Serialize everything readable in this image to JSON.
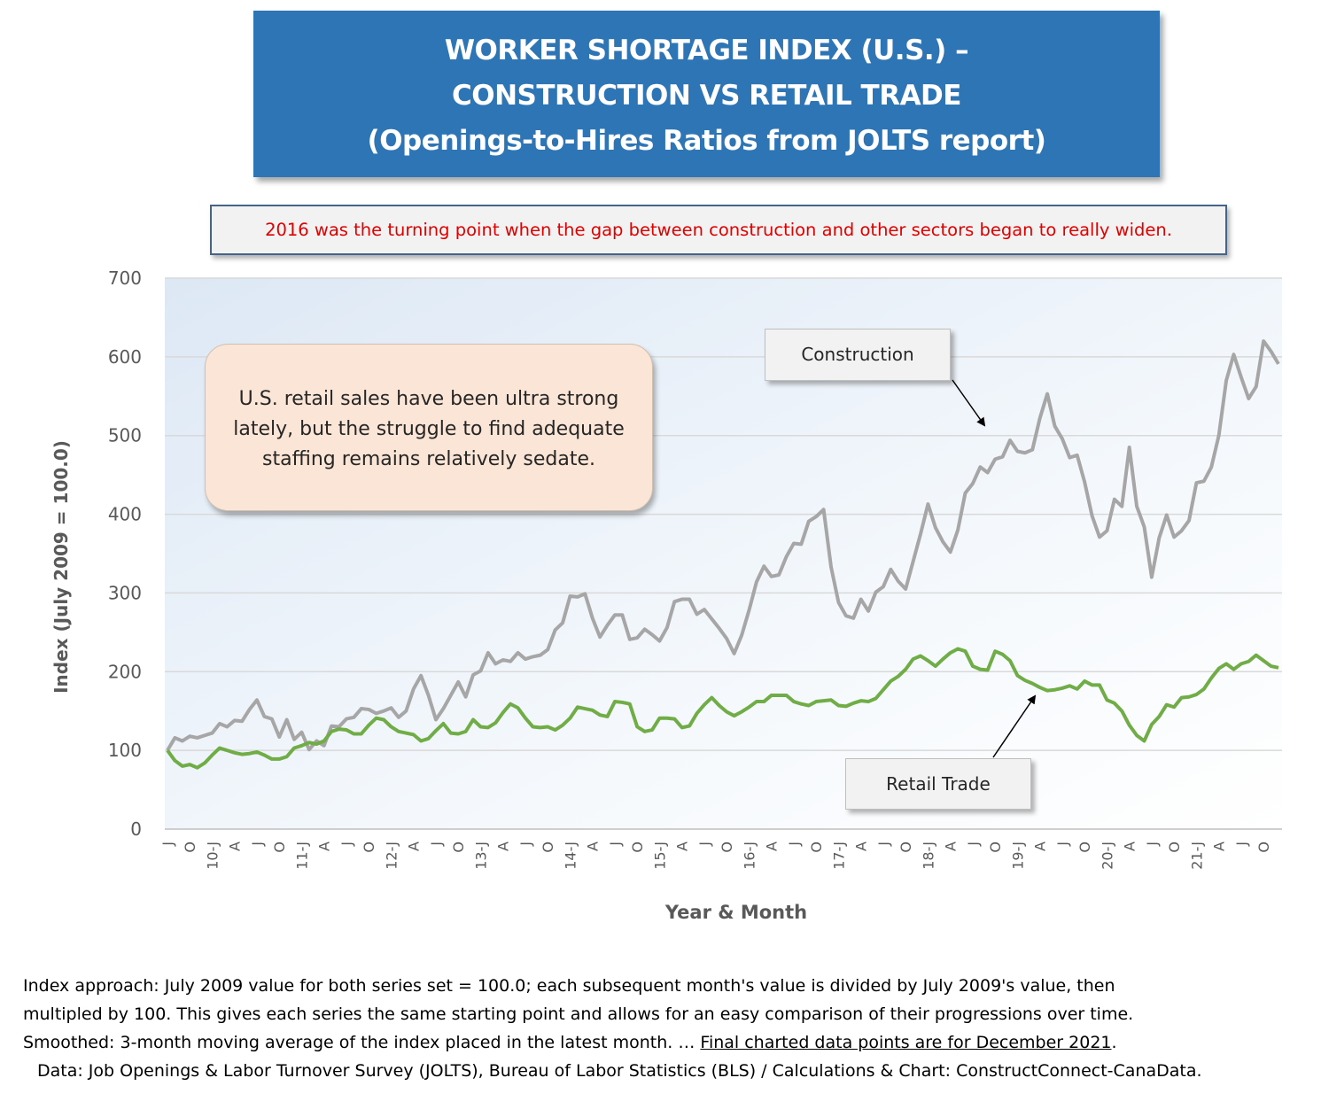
{
  "title": {
    "line1": "WORKER SHORTAGE INDEX (U.S.) –",
    "line2": "CONSTRUCTION VS RETAIL TRADE",
    "line3": "(Openings-to-Hires Ratios from JOLTS report)"
  },
  "note": "2016 was the turning point when the gap between construction and other sectors began to really widen.",
  "callout": "U.S. retail sales have been ultra strong lately, but the struggle to find adequate staffing remains relatively sedate.",
  "labels": {
    "construction": "Construction",
    "retail": "Retail Trade"
  },
  "footnote": {
    "line1": "Index approach: July 2009 value for both series set = 100.0; each subsequent month's value is divided by July 2009's value, then",
    "line2": "multipled by 100. This gives each series the same starting point and allows for an easy comparison of their progressions over time.",
    "line3_a": "Smoothed: 3-month moving average of the index placed in the latest month. … ",
    "line3_b": "Final charted data points are for December 2021",
    "line3_c": ".",
    "line4": "Data: Job Openings & Labor Turnover Survey (JOLTS), Bureau of Labor Statistics (BLS) / Calculations & Chart: ConstructConnect-CanaData."
  },
  "colors": {
    "construction": "#a6a6a6",
    "retail": "#70ad47",
    "title_bg": "#2e75b6",
    "note_text": "#e00000",
    "callout_bg": "#fbe5d6"
  },
  "chart_data": {
    "type": "line",
    "xlabel": "Year & Month",
    "ylabel": "Index (July 2009 = 100.0)",
    "ylim": [
      0,
      700
    ],
    "yticks": [
      0,
      100,
      200,
      300,
      400,
      500,
      600,
      700
    ],
    "grid": true,
    "x": [
      "2009-07",
      "2009-08",
      "2009-09",
      "2009-10",
      "2009-11",
      "2009-12",
      "2010-01",
      "2010-02",
      "2010-03",
      "2010-04",
      "2010-05",
      "2010-06",
      "2010-07",
      "2010-08",
      "2010-09",
      "2010-10",
      "2010-11",
      "2010-12",
      "2011-01",
      "2011-02",
      "2011-03",
      "2011-04",
      "2011-05",
      "2011-06",
      "2011-07",
      "2011-08",
      "2011-09",
      "2011-10",
      "2011-11",
      "2011-12",
      "2012-01",
      "2012-02",
      "2012-03",
      "2012-04",
      "2012-05",
      "2012-06",
      "2012-07",
      "2012-08",
      "2012-09",
      "2012-10",
      "2012-11",
      "2012-12",
      "2013-01",
      "2013-02",
      "2013-03",
      "2013-04",
      "2013-05",
      "2013-06",
      "2013-07",
      "2013-08",
      "2013-09",
      "2013-10",
      "2013-11",
      "2013-12",
      "2014-01",
      "2014-02",
      "2014-03",
      "2014-04",
      "2014-05",
      "2014-06",
      "2014-07",
      "2014-08",
      "2014-09",
      "2014-10",
      "2014-11",
      "2014-12",
      "2015-01",
      "2015-02",
      "2015-03",
      "2015-04",
      "2015-05",
      "2015-06",
      "2015-07",
      "2015-08",
      "2015-09",
      "2015-10",
      "2015-11",
      "2015-12",
      "2016-01",
      "2016-02",
      "2016-03",
      "2016-04",
      "2016-05",
      "2016-06",
      "2016-07",
      "2016-08",
      "2016-09",
      "2016-10",
      "2016-11",
      "2016-12",
      "2017-01",
      "2017-02",
      "2017-03",
      "2017-04",
      "2017-05",
      "2017-06",
      "2017-07",
      "2017-08",
      "2017-09",
      "2017-10",
      "2017-11",
      "2017-12",
      "2018-01",
      "2018-02",
      "2018-03",
      "2018-04",
      "2018-05",
      "2018-06",
      "2018-07",
      "2018-08",
      "2018-09",
      "2018-10",
      "2018-11",
      "2018-12",
      "2019-01",
      "2019-02",
      "2019-03",
      "2019-04",
      "2019-05",
      "2019-06",
      "2019-07",
      "2019-08",
      "2019-09",
      "2019-10",
      "2019-11",
      "2019-12",
      "2020-01",
      "2020-02",
      "2020-03",
      "2020-04",
      "2020-05",
      "2020-06",
      "2020-07",
      "2020-08",
      "2020-09",
      "2020-10",
      "2020-11",
      "2020-12",
      "2021-01",
      "2021-02",
      "2021-03",
      "2021-04",
      "2021-05",
      "2021-06",
      "2021-07",
      "2021-08",
      "2021-09",
      "2021-10",
      "2021-11",
      "2021-12"
    ],
    "tick_labels": [
      {
        "month": "2009-07",
        "label": "J"
      },
      {
        "month": "2009-10",
        "label": "O"
      },
      {
        "month": "2010-01",
        "label": "10-J"
      },
      {
        "month": "2010-04",
        "label": "A"
      },
      {
        "month": "2010-07",
        "label": "J"
      },
      {
        "month": "2010-10",
        "label": "O"
      },
      {
        "month": "2011-01",
        "label": "11-J"
      },
      {
        "month": "2011-04",
        "label": "A"
      },
      {
        "month": "2011-07",
        "label": "J"
      },
      {
        "month": "2011-10",
        "label": "O"
      },
      {
        "month": "2012-01",
        "label": "12-J"
      },
      {
        "month": "2012-04",
        "label": "A"
      },
      {
        "month": "2012-07",
        "label": "J"
      },
      {
        "month": "2012-10",
        "label": "O"
      },
      {
        "month": "2013-01",
        "label": "13-J"
      },
      {
        "month": "2013-04",
        "label": "A"
      },
      {
        "month": "2013-07",
        "label": "J"
      },
      {
        "month": "2013-10",
        "label": "O"
      },
      {
        "month": "2014-01",
        "label": "14-J"
      },
      {
        "month": "2014-04",
        "label": "A"
      },
      {
        "month": "2014-07",
        "label": "J"
      },
      {
        "month": "2014-10",
        "label": "O"
      },
      {
        "month": "2015-01",
        "label": "15-J"
      },
      {
        "month": "2015-04",
        "label": "A"
      },
      {
        "month": "2015-07",
        "label": "J"
      },
      {
        "month": "2015-10",
        "label": "O"
      },
      {
        "month": "2016-01",
        "label": "16-J"
      },
      {
        "month": "2016-04",
        "label": "A"
      },
      {
        "month": "2016-07",
        "label": "J"
      },
      {
        "month": "2016-10",
        "label": "O"
      },
      {
        "month": "2017-01",
        "label": "17-J"
      },
      {
        "month": "2017-04",
        "label": "A"
      },
      {
        "month": "2017-07",
        "label": "J"
      },
      {
        "month": "2017-10",
        "label": "O"
      },
      {
        "month": "2018-01",
        "label": "18-J"
      },
      {
        "month": "2018-04",
        "label": "A"
      },
      {
        "month": "2018-07",
        "label": "J"
      },
      {
        "month": "2018-10",
        "label": "O"
      },
      {
        "month": "2019-01",
        "label": "19-J"
      },
      {
        "month": "2019-04",
        "label": "A"
      },
      {
        "month": "2019-07",
        "label": "J"
      },
      {
        "month": "2019-10",
        "label": "O"
      },
      {
        "month": "2020-01",
        "label": "20-J"
      },
      {
        "month": "2020-04",
        "label": "A"
      },
      {
        "month": "2020-07",
        "label": "J"
      },
      {
        "month": "2020-10",
        "label": "O"
      },
      {
        "month": "2021-01",
        "label": "21-J"
      },
      {
        "month": "2021-04",
        "label": "A"
      },
      {
        "month": "2021-07",
        "label": "J"
      },
      {
        "month": "2021-10",
        "label": "O"
      }
    ],
    "series": [
      {
        "name": "Construction",
        "values": [
          100,
          116,
          112,
          118,
          116,
          119,
          122,
          134,
          130,
          138,
          137,
          152,
          164,
          143,
          140,
          117,
          139,
          114,
          123,
          101,
          112,
          106,
          131,
          130,
          140,
          142,
          153,
          152,
          147,
          150,
          154,
          142,
          150,
          178,
          195,
          170,
          139,
          153,
          170,
          187,
          168,
          196,
          201,
          224,
          210,
          215,
          213,
          224,
          216,
          219,
          221,
          228,
          253,
          262,
          296,
          295,
          299,
          268,
          244,
          259,
          272,
          272,
          241,
          243,
          254,
          247,
          239,
          256,
          289,
          292,
          292,
          273,
          279,
          267,
          255,
          242,
          223,
          246,
          278,
          314,
          334,
          321,
          323,
          346,
          363,
          362,
          391,
          397,
          406,
          333,
          288,
          271,
          268,
          292,
          277,
          301,
          308,
          330,
          315,
          305,
          340,
          375,
          413,
          383,
          365,
          352,
          380,
          427,
          439,
          460,
          453,
          470,
          473,
          494,
          480,
          478,
          482,
          522,
          553,
          512,
          496,
          472,
          475,
          441,
          398,
          371,
          379,
          419,
          410,
          485,
          410,
          384,
          320,
          370,
          399,
          371,
          379,
          392,
          440,
          442,
          460,
          500,
          570,
          603,
          574,
          547,
          562,
          620,
          607,
          591
        ]
      },
      {
        "name": "Retail Trade",
        "values": [
          100,
          87,
          80,
          82,
          78,
          84,
          94,
          103,
          100,
          97,
          95,
          96,
          98,
          94,
          89,
          89,
          92,
          103,
          106,
          110,
          108,
          112,
          124,
          127,
          126,
          121,
          121,
          132,
          141,
          139,
          130,
          124,
          122,
          120,
          112,
          115,
          125,
          134,
          122,
          121,
          124,
          139,
          130,
          129,
          135,
          148,
          159,
          154,
          141,
          130,
          129,
          130,
          126,
          132,
          141,
          155,
          153,
          151,
          145,
          143,
          162,
          161,
          159,
          130,
          124,
          126,
          141,
          141,
          140,
          129,
          131,
          147,
          158,
          167,
          157,
          149,
          144,
          149,
          155,
          162,
          162,
          170,
          170,
          170,
          162,
          159,
          157,
          162,
          163,
          164,
          157,
          156,
          160,
          163,
          162,
          166,
          177,
          188,
          194,
          203,
          216,
          220,
          214,
          207,
          216,
          224,
          229,
          226,
          207,
          203,
          202,
          226,
          222,
          214,
          195,
          189,
          185,
          180,
          176,
          177,
          179,
          182,
          178,
          188,
          183,
          183,
          164,
          160,
          150,
          132,
          119,
          112,
          133,
          143,
          158,
          155,
          167,
          168,
          171,
          178,
          192,
          204,
          210,
          203,
          210,
          213,
          221,
          214,
          207,
          205
        ]
      }
    ]
  }
}
